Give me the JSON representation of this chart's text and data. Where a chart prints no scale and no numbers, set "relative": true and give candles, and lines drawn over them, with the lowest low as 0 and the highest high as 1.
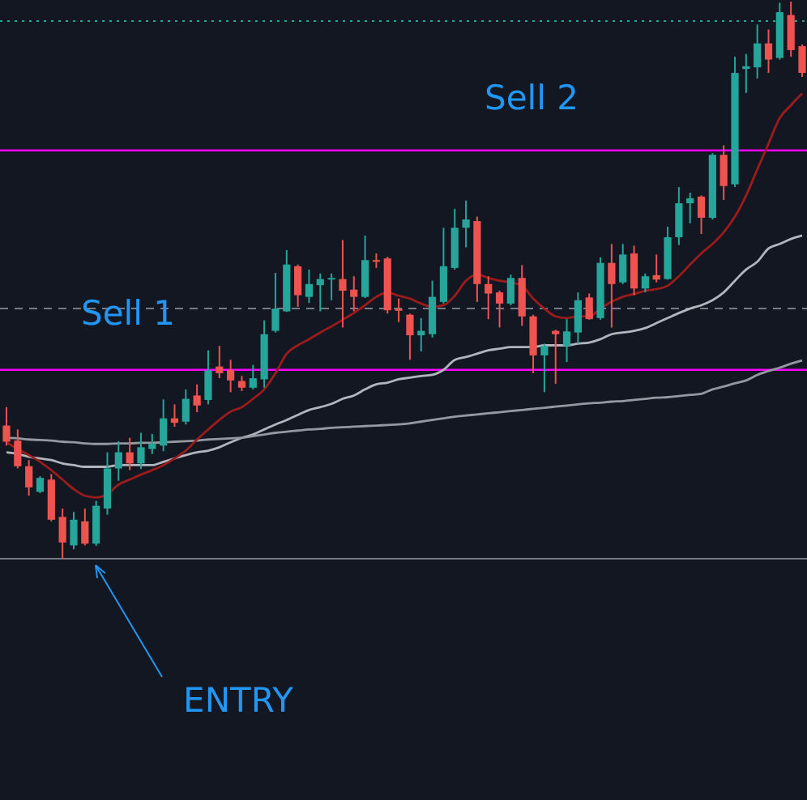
{
  "chart_data": {
    "type": "candlestick",
    "relative": true,
    "categories": [
      null,
      null,
      null,
      null,
      null,
      null,
      null,
      null,
      null,
      null,
      null,
      null,
      null,
      null,
      null,
      null,
      null,
      null,
      null,
      null,
      null,
      null,
      null,
      null,
      null,
      null,
      null,
      null,
      null,
      null,
      null,
      null,
      null,
      null,
      null,
      null,
      null,
      null,
      null,
      null,
      null,
      null,
      null,
      null,
      null,
      null,
      null,
      null,
      null,
      null,
      null,
      null,
      null,
      null,
      null,
      null,
      null,
      null,
      null,
      null,
      null,
      null,
      null,
      null,
      null,
      null,
      null,
      null,
      null,
      null,
      null,
      null
    ],
    "ohlc": [
      [
        0.239,
        0.272,
        0.203,
        0.21
      ],
      [
        0.212,
        0.232,
        0.162,
        0.166
      ],
      [
        0.166,
        0.177,
        0.113,
        0.128
      ],
      [
        0.12,
        0.148,
        0.118,
        0.145
      ],
      [
        0.142,
        0.152,
        0.067,
        0.07
      ],
      [
        0.075,
        0.09,
        0,
        0.029
      ],
      [
        0.024,
        0.084,
        0.017,
        0.07
      ],
      [
        0.067,
        0.09,
        0.024,
        0.027
      ],
      [
        0.027,
        0.104,
        0.023,
        0.095
      ],
      [
        0.09,
        0.191,
        0.079,
        0.162
      ],
      [
        0.162,
        0.211,
        0.14,
        0.191
      ],
      [
        0.191,
        0.217,
        0.159,
        0.171
      ],
      [
        0.171,
        0.226,
        0.161,
        0.2
      ],
      [
        0.197,
        0.224,
        0.188,
        0.206
      ],
      [
        0.203,
        0.286,
        0.193,
        0.252
      ],
      [
        0.252,
        0.277,
        0.237,
        0.244
      ],
      [
        0.246,
        0.304,
        0.241,
        0.287
      ],
      [
        0.293,
        0.313,
        0.263,
        0.275
      ],
      [
        0.285,
        0.374,
        0.277,
        0.338
      ],
      [
        0.345,
        0.382,
        0.324,
        0.333
      ],
      [
        0.339,
        0.357,
        0.299,
        0.32
      ],
      [
        0.319,
        0.328,
        0.301,
        0.307
      ],
      [
        0.307,
        0.348,
        0.304,
        0.324
      ],
      [
        0.322,
        0.428,
        0.307,
        0.403
      ],
      [
        0.409,
        0.513,
        0.406,
        0.449
      ],
      [
        0.444,
        0.554,
        0.443,
        0.528
      ],
      [
        0.525,
        0.528,
        0.452,
        0.473
      ],
      [
        0.47,
        0.519,
        0.459,
        0.493
      ],
      [
        0.491,
        0.512,
        0.444,
        0.502
      ],
      [
        0.503,
        0.512,
        0.464,
        0.504
      ],
      [
        0.502,
        0.572,
        0.415,
        0.481
      ],
      [
        0.483,
        0.507,
        0.444,
        0.47
      ],
      [
        0.47,
        0.58,
        0.468,
        0.536
      ],
      [
        0.536,
        0.548,
        0.522,
        0.534
      ],
      [
        0.539,
        0.542,
        0.44,
        0.446
      ],
      [
        0.448,
        0.467,
        0.425,
        0.446
      ],
      [
        0.438,
        0.44,
        0.357,
        0.401
      ],
      [
        0.401,
        0.432,
        0.372,
        0.409
      ],
      [
        0.403,
        0.499,
        0.397,
        0.47
      ],
      [
        0.461,
        0.594,
        0.458,
        0.525
      ],
      [
        0.522,
        0.628,
        0.519,
        0.594
      ],
      [
        0.594,
        0.643,
        0.559,
        0.609
      ],
      [
        0.606,
        0.614,
        0.461,
        0.493
      ],
      [
        0.493,
        0.507,
        0.43,
        0.476
      ],
      [
        0.478,
        0.481,
        0.415,
        0.458
      ],
      [
        0.458,
        0.51,
        0.455,
        0.504
      ],
      [
        0.504,
        0.527,
        0.418,
        0.435
      ],
      [
        0.435,
        0.438,
        0.333,
        0.365
      ],
      [
        0.365,
        0.386,
        0.299,
        0.382
      ],
      [
        0.409,
        0.411,
        0.314,
        0.403
      ],
      [
        0.382,
        0.43,
        0.353,
        0.408
      ],
      [
        0.406,
        0.478,
        0.386,
        0.464
      ],
      [
        0.469,
        0.476,
        0.429,
        0.43
      ],
      [
        0.432,
        0.541,
        0.429,
        0.531
      ],
      [
        0.531,
        0.565,
        0.415,
        0.493
      ],
      [
        0.496,
        0.565,
        0.493,
        0.546
      ],
      [
        0.548,
        0.562,
        0.473,
        0.485
      ],
      [
        0.485,
        0.512,
        0.478,
        0.507
      ],
      [
        0.509,
        0.546,
        0.496,
        0.501
      ],
      [
        0.502,
        0.596,
        0.501,
        0.577
      ],
      [
        0.577,
        0.667,
        0.563,
        0.638
      ],
      [
        0.638,
        0.657,
        0.602,
        0.647
      ],
      [
        0.65,
        0.652,
        0.583,
        0.612
      ],
      [
        0.612,
        0.728,
        0.609,
        0.725
      ],
      [
        0.725,
        0.742,
        0.644,
        0.669
      ],
      [
        0.672,
        0.901,
        0.667,
        0.872
      ],
      [
        0.879,
        0.906,
        0.836,
        0.884
      ],
      [
        0.882,
        0.959,
        0.862,
        0.925
      ],
      [
        0.925,
        0.95,
        0.872,
        0.896
      ],
      [
        0.899,
        0.998,
        0.896,
        0.981
      ],
      [
        0.976,
        1,
        0.901,
        0.913
      ],
      [
        0.92,
        0.923,
        0.865,
        0.872
      ]
    ],
    "series": [
      {
        "type": "line",
        "color": "#b2b5be",
        "values": [
          0.191,
          0.188,
          0.183,
          0.18,
          0.177,
          0.171,
          0.168,
          0.165,
          0.165,
          0.165,
          0.168,
          0.168,
          0.168,
          0.168,
          0.174,
          0.18,
          0.186,
          0.191,
          0.194,
          0.2,
          0.209,
          0.217,
          0.223,
          0.232,
          0.241,
          0.249,
          0.258,
          0.267,
          0.272,
          0.278,
          0.287,
          0.293,
          0.304,
          0.313,
          0.316,
          0.322,
          0.325,
          0.328,
          0.33,
          0.339,
          0.357,
          0.362,
          0.368,
          0.374,
          0.377,
          0.38,
          0.38,
          0.38,
          0.383,
          0.383,
          0.383,
          0.386,
          0.388,
          0.394,
          0.403,
          0.406,
          0.409,
          0.414,
          0.423,
          0.432,
          0.441,
          0.449,
          0.455,
          0.464,
          0.478,
          0.499,
          0.519,
          0.533,
          0.557,
          0.565,
          0.574,
          0.58
        ]
      },
      {
        "type": "line",
        "color": "#9598a1",
        "values": [
          0.217,
          0.216,
          0.214,
          0.213,
          0.212,
          0.21,
          0.209,
          0.207,
          0.206,
          0.206,
          0.207,
          0.207,
          0.208,
          0.208,
          0.209,
          0.21,
          0.211,
          0.212,
          0.214,
          0.215,
          0.216,
          0.217,
          0.22,
          0.223,
          0.226,
          0.228,
          0.23,
          0.232,
          0.233,
          0.235,
          0.236,
          0.237,
          0.238,
          0.239,
          0.24,
          0.241,
          0.243,
          0.246,
          0.249,
          0.252,
          0.255,
          0.257,
          0.259,
          0.261,
          0.263,
          0.265,
          0.267,
          0.269,
          0.271,
          0.273,
          0.275,
          0.277,
          0.279,
          0.28,
          0.282,
          0.283,
          0.285,
          0.287,
          0.289,
          0.29,
          0.292,
          0.294,
          0.296,
          0.304,
          0.309,
          0.315,
          0.32,
          0.33,
          0.337,
          0.343,
          0.35,
          0.356
        ]
      },
      {
        "type": "line",
        "color": "#9c1b1b",
        "values": [
          0.209,
          0.197,
          0.186,
          0.174,
          0.159,
          0.142,
          0.125,
          0.113,
          0.11,
          0.116,
          0.133,
          0.142,
          0.151,
          0.159,
          0.168,
          0.18,
          0.194,
          0.214,
          0.232,
          0.249,
          0.264,
          0.272,
          0.287,
          0.304,
          0.333,
          0.368,
          0.383,
          0.394,
          0.406,
          0.417,
          0.429,
          0.441,
          0.455,
          0.47,
          0.478,
          0.472,
          0.467,
          0.458,
          0.452,
          0.455,
          0.472,
          0.499,
          0.51,
          0.504,
          0.499,
          0.496,
          0.49,
          0.467,
          0.449,
          0.435,
          0.432,
          0.435,
          0.435,
          0.449,
          0.461,
          0.47,
          0.475,
          0.481,
          0.484,
          0.49,
          0.507,
          0.528,
          0.548,
          0.565,
          0.586,
          0.614,
          0.652,
          0.699,
          0.745,
          0.791,
          0.814,
          0.835
        ]
      }
    ],
    "ref_lines": [
      {
        "axis": "y",
        "value": 0.733,
        "color": "#ff00ff",
        "line_style": "solid"
      },
      {
        "axis": "y",
        "value": 0.339,
        "color": "#ff00ff",
        "line_style": "solid"
      },
      {
        "axis": "y",
        "value": 0.449,
        "color": "#787b86",
        "line_style": "dashed"
      },
      {
        "axis": "y",
        "value": 0,
        "color": "#787b86",
        "line_style": "solid"
      },
      {
        "axis": "y",
        "value": 0.965,
        "color": "#26a69a",
        "line_style": "dotted"
      }
    ],
    "annotations": [
      "Sell 2",
      "Sell 1",
      "ENTRY"
    ]
  }
}
